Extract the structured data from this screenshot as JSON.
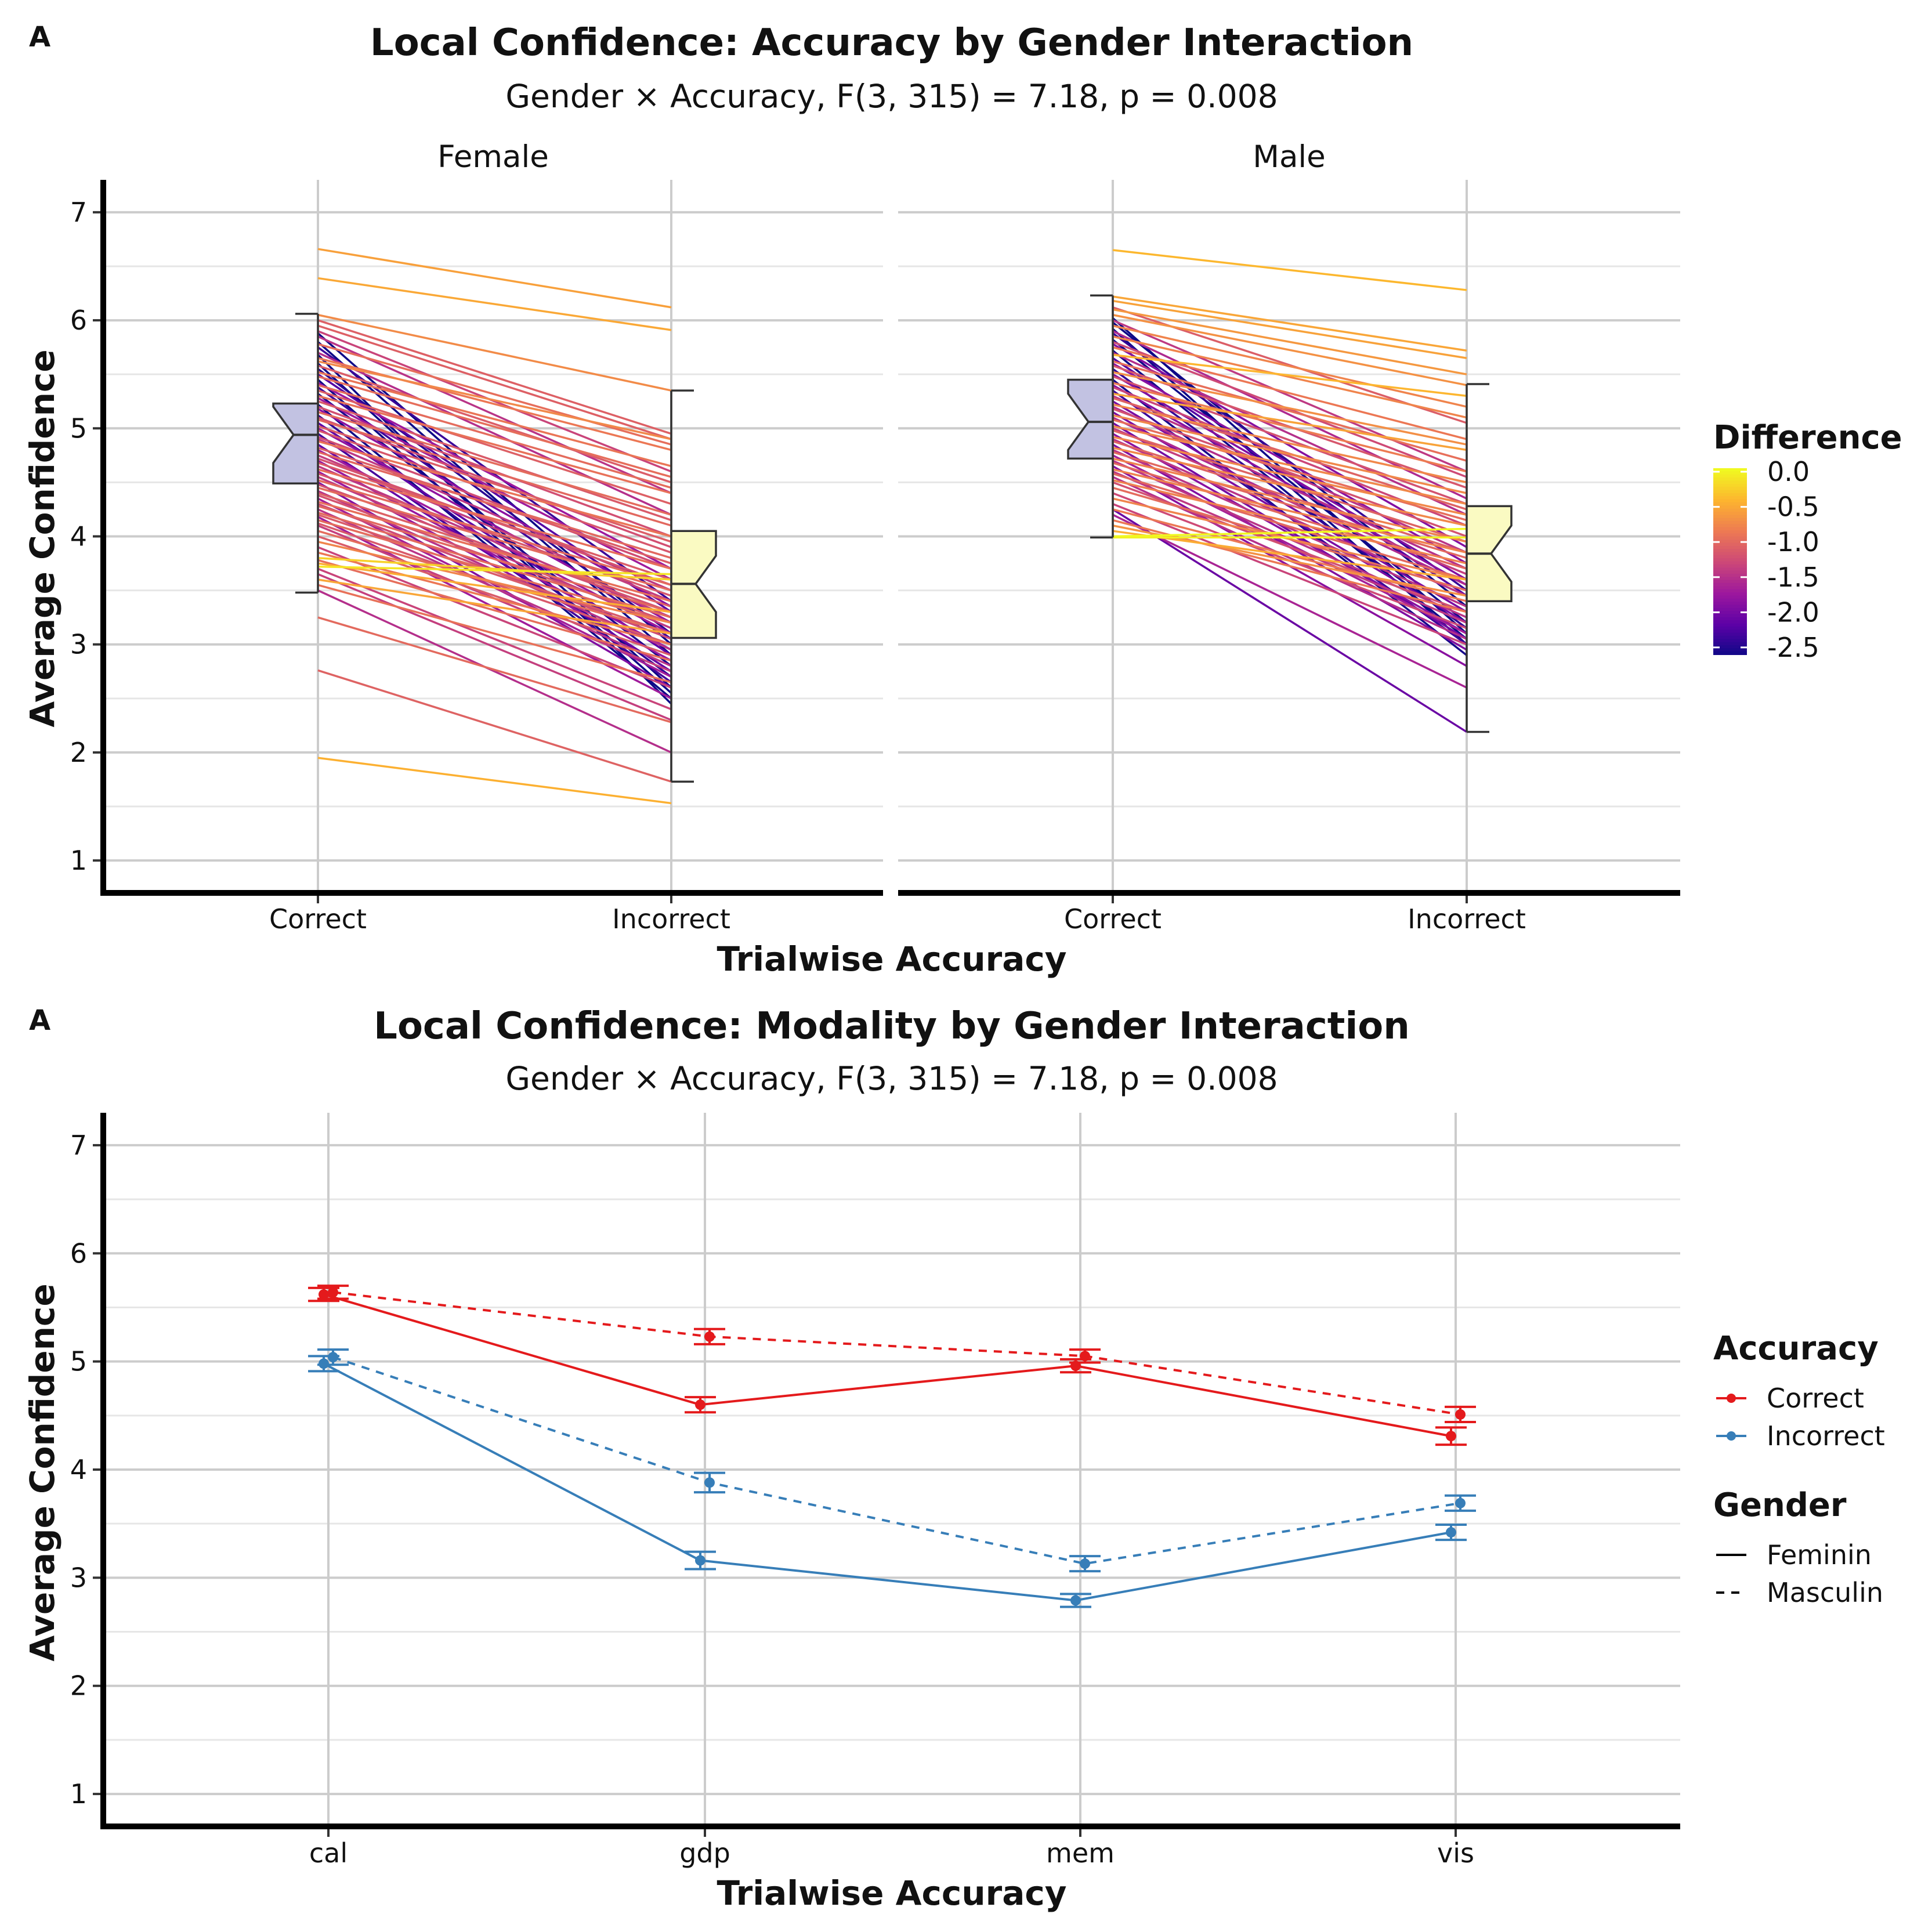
{
  "chart_data": [
    {
      "tag": "A",
      "type": "line",
      "subtype": "paired slope lines with notched boxplots, faceted",
      "title": "Local Confidence: Accuracy by Gender Interaction",
      "subtitle": "Gender × Accuracy, F(3, 315) = 7.18, p = 0.008",
      "xlabel": "Trialwise Accuracy",
      "ylabel": "Average Confidence",
      "ylim": [
        0.7,
        7.3
      ],
      "yticks": [
        "1",
        "2",
        "3",
        "4",
        "5",
        "6",
        "7"
      ],
      "categories": [
        "Correct",
        "Incorrect"
      ],
      "grid": true,
      "legend": {
        "title": "Difference",
        "placement": "right",
        "kind": "colorbar",
        "range": [
          -2.6,
          0.05
        ],
        "ticks": [
          0.0,
          -0.5,
          -1.0,
          -1.5,
          -2.0,
          -2.5
        ],
        "tick_labels": [
          "0.0",
          "-0.5",
          "-1.0",
          "-1.5",
          "-2.0",
          "-2.5"
        ],
        "colors": [
          "#0d0887",
          "#5c01a6",
          "#9c179e",
          "#cc4778",
          "#ed7953",
          "#fdb42f",
          "#f0f921"
        ]
      },
      "facets": [
        {
          "name": "Female",
          "boxplots": [
            {
              "category": "Correct",
              "min": 3.48,
              "q1": 4.49,
              "median": 4.94,
              "q3": 5.23,
              "max": 6.06,
              "fill": "#c2c2e2"
            },
            {
              "category": "Incorrect",
              "min": 1.73,
              "q1": 3.06,
              "median": 3.56,
              "q3": 4.05,
              "max": 5.35,
              "fill": "#fafac2"
            }
          ],
          "pairs": [
            [
              6.66,
              6.12
            ],
            [
              6.39,
              5.91
            ],
            [
              6.05,
              5.35
            ],
            [
              6.0,
              4.95
            ],
            [
              5.95,
              4.9
            ],
            [
              5.9,
              4.6
            ],
            [
              5.88,
              3.0
            ],
            [
              5.85,
              4.4
            ],
            [
              5.8,
              2.9
            ],
            [
              5.78,
              4.85
            ],
            [
              5.75,
              3.4
            ],
            [
              5.7,
              4.2
            ],
            [
              5.68,
              2.45
            ],
            [
              5.65,
              4.8
            ],
            [
              5.62,
              4.9
            ],
            [
              5.6,
              2.6
            ],
            [
              5.58,
              4.5
            ],
            [
              5.55,
              3.1
            ],
            [
              5.52,
              4.65
            ],
            [
              5.5,
              3.3
            ],
            [
              5.48,
              4.55
            ],
            [
              5.45,
              2.55
            ],
            [
              5.42,
              3.7
            ],
            [
              5.4,
              4.45
            ],
            [
              5.38,
              3.05
            ],
            [
              5.35,
              4.3
            ],
            [
              5.32,
              2.8
            ],
            [
              5.3,
              4.4
            ],
            [
              5.28,
              3.6
            ],
            [
              5.25,
              4.15
            ],
            [
              5.22,
              2.5
            ],
            [
              5.2,
              4.0
            ],
            [
              5.18,
              3.35
            ],
            [
              5.15,
              4.2
            ],
            [
              5.12,
              2.7
            ],
            [
              5.1,
              3.9
            ],
            [
              5.08,
              4.1
            ],
            [
              5.05,
              2.9
            ],
            [
              5.02,
              3.95
            ],
            [
              5.0,
              3.2
            ],
            [
              4.98,
              3.85
            ],
            [
              4.95,
              2.65
            ],
            [
              4.92,
              3.7
            ],
            [
              4.9,
              3.5
            ],
            [
              4.88,
              4.0
            ],
            [
              4.85,
              2.75
            ],
            [
              4.82,
              3.75
            ],
            [
              4.8,
              3.1
            ],
            [
              4.78,
              3.8
            ],
            [
              4.75,
              3.4
            ],
            [
              4.72,
              3.55
            ],
            [
              4.7,
              2.95
            ],
            [
              4.68,
              3.6
            ],
            [
              4.65,
              3.25
            ],
            [
              4.62,
              3.7
            ],
            [
              4.6,
              2.85
            ],
            [
              4.58,
              3.45
            ],
            [
              4.55,
              3.15
            ],
            [
              4.52,
              3.55
            ],
            [
              4.5,
              2.6
            ],
            [
              4.48,
              3.3
            ],
            [
              4.45,
              3.5
            ],
            [
              4.42,
              2.95
            ],
            [
              4.4,
              3.35
            ],
            [
              4.38,
              3.2
            ],
            [
              4.35,
              2.7
            ],
            [
              4.32,
              3.4
            ],
            [
              4.3,
              3.05
            ],
            [
              4.28,
              3.3
            ],
            [
              4.25,
              2.8
            ],
            [
              4.22,
              3.25
            ],
            [
              4.2,
              3.1
            ],
            [
              4.18,
              2.5
            ],
            [
              4.15,
              3.2
            ],
            [
              4.12,
              3.0
            ],
            [
              4.1,
              2.75
            ],
            [
              4.05,
              3.1
            ],
            [
              4.0,
              2.9
            ],
            [
              3.95,
              3.2
            ],
            [
              3.9,
              2.6
            ],
            [
              3.85,
              3.0
            ],
            [
              3.8,
              3.6
            ],
            [
              3.78,
              2.85
            ],
            [
              3.75,
              3.3
            ],
            [
              3.72,
              3.65
            ],
            [
              3.7,
              2.4
            ],
            [
              3.65,
              2.3
            ],
            [
              3.6,
              3.1
            ],
            [
              3.55,
              2.65
            ],
            [
              3.5,
              2.0
            ],
            [
              3.25,
              2.28
            ],
            [
              2.76,
              1.73
            ],
            [
              1.95,
              1.53
            ]
          ]
        },
        {
          "name": "Male",
          "boxplots": [
            {
              "category": "Correct",
              "min": 3.99,
              "q1": 4.72,
              "median": 5.06,
              "q3": 5.45,
              "max": 6.23,
              "fill": "#c2c2e2"
            },
            {
              "category": "Incorrect",
              "min": 2.19,
              "q1": 3.4,
              "median": 3.84,
              "q3": 4.28,
              "max": 5.41,
              "fill": "#fafac2"
            }
          ],
          "pairs": [
            [
              6.65,
              6.28
            ],
            [
              6.22,
              5.72
            ],
            [
              6.18,
              5.65
            ],
            [
              6.12,
              5.05
            ],
            [
              6.1,
              5.5
            ],
            [
              6.05,
              5.4
            ],
            [
              6.02,
              3.1
            ],
            [
              6.0,
              4.6
            ],
            [
              5.98,
              3.35
            ],
            [
              5.95,
              5.2
            ],
            [
              5.92,
              3.0
            ],
            [
              5.9,
              4.35
            ],
            [
              5.88,
              3.5
            ],
            [
              5.85,
              5.1
            ],
            [
              5.82,
              3.2
            ],
            [
              5.8,
              4.55
            ],
            [
              5.78,
              3.9
            ],
            [
              5.75,
              4.9
            ],
            [
              5.72,
              3.05
            ],
            [
              5.7,
              4.2
            ],
            [
              5.68,
              5.3
            ],
            [
              5.65,
              3.45
            ],
            [
              5.62,
              4.7
            ],
            [
              5.6,
              3.75
            ],
            [
              5.58,
              4.45
            ],
            [
              5.55,
              3.15
            ],
            [
              5.52,
              4.85
            ],
            [
              5.5,
              3.6
            ],
            [
              5.48,
              4.3
            ],
            [
              5.45,
              2.9
            ],
            [
              5.42,
              4.6
            ],
            [
              5.4,
              3.55
            ],
            [
              5.38,
              4.1
            ],
            [
              5.35,
              3.0
            ],
            [
              5.32,
              4.8
            ],
            [
              5.3,
              3.85
            ],
            [
              5.28,
              4.25
            ],
            [
              5.25,
              3.3
            ],
            [
              5.22,
              4.5
            ],
            [
              5.2,
              3.7
            ],
            [
              5.18,
              4.0
            ],
            [
              5.15,
              3.2
            ],
            [
              5.12,
              4.4
            ],
            [
              5.1,
              3.55
            ],
            [
              5.08,
              4.15
            ],
            [
              5.05,
              3.05
            ],
            [
              5.02,
              4.3
            ],
            [
              5.0,
              3.65
            ],
            [
              4.98,
              3.95
            ],
            [
              4.95,
              3.1
            ],
            [
              4.92,
              4.2
            ],
            [
              4.9,
              3.45
            ],
            [
              4.88,
              3.85
            ],
            [
              4.85,
              2.95
            ],
            [
              4.82,
              4.1
            ],
            [
              4.8,
              3.35
            ],
            [
              4.78,
              3.8
            ],
            [
              4.75,
              3.1
            ],
            [
              4.72,
              3.95
            ],
            [
              4.7,
              3.25
            ],
            [
              4.68,
              3.7
            ],
            [
              4.65,
              2.8
            ],
            [
              4.62,
              3.85
            ],
            [
              4.6,
              3.2
            ],
            [
              4.58,
              3.6
            ],
            [
              4.55,
              3.05
            ],
            [
              4.52,
              3.75
            ],
            [
              4.5,
              3.3
            ],
            [
              4.45,
              3.5
            ],
            [
              4.4,
              3.15
            ],
            [
              4.35,
              3.6
            ],
            [
              4.3,
              3.0
            ],
            [
              4.25,
              3.4
            ],
            [
              4.2,
              2.6
            ],
            [
              4.15,
              3.3
            ],
            [
              4.1,
              3.45
            ],
            [
              4.05,
              3.6
            ],
            [
              4.0,
              4.07
            ],
            [
              3.99,
              3.99
            ],
            [
              4.25,
              2.19
            ]
          ]
        }
      ]
    },
    {
      "tag": "A",
      "type": "line",
      "subtype": "interaction plot with error bars",
      "title": "Local Confidence: Modality by Gender Interaction",
      "subtitle": "Gender × Accuracy, F(3, 315) = 7.18, p = 0.008",
      "xlabel": "Trialwise Accuracy",
      "ylabel": "Average Confidence",
      "ylim": [
        0.7,
        7.3
      ],
      "yticks": [
        "1",
        "2",
        "3",
        "4",
        "5",
        "6",
        "7"
      ],
      "categories": [
        "cal",
        "gdp",
        "mem",
        "vis"
      ],
      "grid": true,
      "legend": {
        "placement": "right",
        "groups": [
          {
            "title": "Accuracy",
            "items": [
              {
                "label": "Correct",
                "color": "#e41a1c"
              },
              {
                "label": "Incorrect",
                "color": "#377eb8"
              }
            ]
          },
          {
            "title": "Gender",
            "items": [
              {
                "label": "Feminin",
                "dash": "solid"
              },
              {
                "label": "Masculin",
                "dash": "dashed"
              }
            ]
          }
        ]
      },
      "series": [
        {
          "accuracy": "Correct",
          "gender": "Feminin",
          "color": "#e41a1c",
          "dashed": false,
          "values": [
            5.62,
            4.6,
            4.96,
            4.31
          ],
          "err": [
            0.06,
            0.07,
            0.06,
            0.08
          ]
        },
        {
          "accuracy": "Correct",
          "gender": "Masculin",
          "color": "#e41a1c",
          "dashed": true,
          "values": [
            5.64,
            5.23,
            5.05,
            4.51
          ],
          "err": [
            0.06,
            0.07,
            0.06,
            0.07
          ]
        },
        {
          "accuracy": "Incorrect",
          "gender": "Feminin",
          "color": "#377eb8",
          "dashed": false,
          "values": [
            4.98,
            3.16,
            2.79,
            3.42
          ],
          "err": [
            0.07,
            0.08,
            0.06,
            0.07
          ]
        },
        {
          "accuracy": "Incorrect",
          "gender": "Masculin",
          "color": "#377eb8",
          "dashed": true,
          "values": [
            5.04,
            3.88,
            3.13,
            3.69
          ],
          "err": [
            0.07,
            0.09,
            0.07,
            0.07
          ]
        }
      ]
    }
  ]
}
